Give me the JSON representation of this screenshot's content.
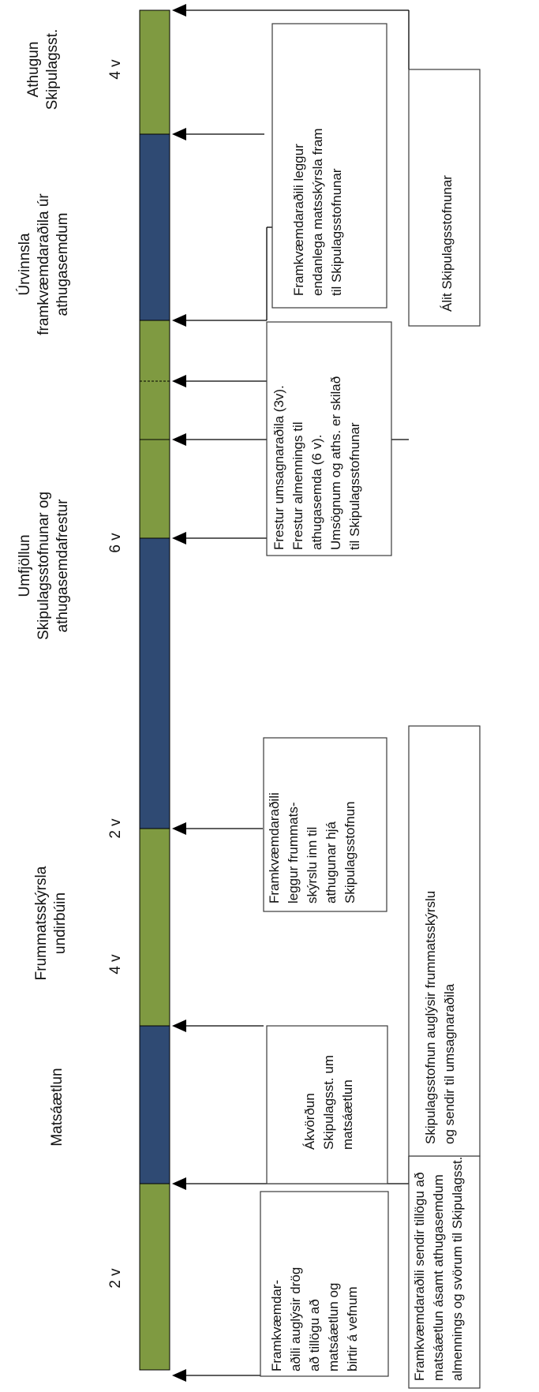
{
  "colors": {
    "green": "#7f9a41",
    "blue": "#2f4a73",
    "line": "#000000",
    "box_border": "#3a3a3a"
  },
  "phases": [
    {
      "title_lines": [
        "Matsáætlun"
      ],
      "duration": "2 v",
      "second_duration": "4 v"
    },
    {
      "title_lines": [
        "Frummatsskýrsla",
        "undirbúin"
      ],
      "duration": "2 v"
    },
    {
      "title_lines": [
        "Umfjöllun",
        "Skipulagsstofnunar og",
        "athugasemdafrestur"
      ],
      "duration": "6 v"
    },
    {
      "title_lines": [
        "Úrvinnsla",
        "framkvæmdaraðila úr",
        "athugasemdum"
      ]
    },
    {
      "title_lines": [
        "Athugun",
        "Skipulagsst."
      ],
      "duration": "4 v"
    }
  ],
  "timeline": {
    "segments": [
      "green",
      "blue",
      "green",
      "blue",
      "green",
      "green",
      "blue",
      "green"
    ]
  },
  "developer_boxes": [
    {
      "lines": [
        "Framkvæmdar-",
        "aðili auglýsir drög",
        "að tillögu að",
        "matsáætlun og",
        "birtir á vefnum"
      ]
    },
    {
      "lines": [
        "Ákvörðun",
        "Skipulagsst. um",
        "matsáætlun"
      ]
    },
    {
      "lines": [
        "Framkvæmdaraðili",
        "leggur frummats-",
        "skýrslu inn til",
        "athugunar hjá",
        "Skipulagsstofnun"
      ]
    },
    {
      "lines": [
        "Frestur umsagnaraðila (3v).",
        "Frestur almennings til",
        "athugasemda (6 v).",
        "Umsögnum og aths. er skilað",
        "til Skipulagsstofnunar"
      ]
    },
    {
      "lines": [
        "Framkvæmdaraðili leggur",
        "endanlega matsskýrsla fram",
        "til  Skipulagsstofnunar"
      ]
    }
  ],
  "agency_boxes": [
    {
      "lines": [
        "Framkvæmdaraðili sendir tillögu að",
        "matsáætlun ásamt athugasemdum",
        "almennings og svörum til Skipulagsst."
      ]
    },
    {
      "lines": [
        "Skipulagsstofnun auglýsir frummatsskýrslu",
        "og sendir til umsagnaraðila"
      ]
    },
    {
      "lines": [
        "Álit Skipulagsstofnunar"
      ]
    }
  ]
}
